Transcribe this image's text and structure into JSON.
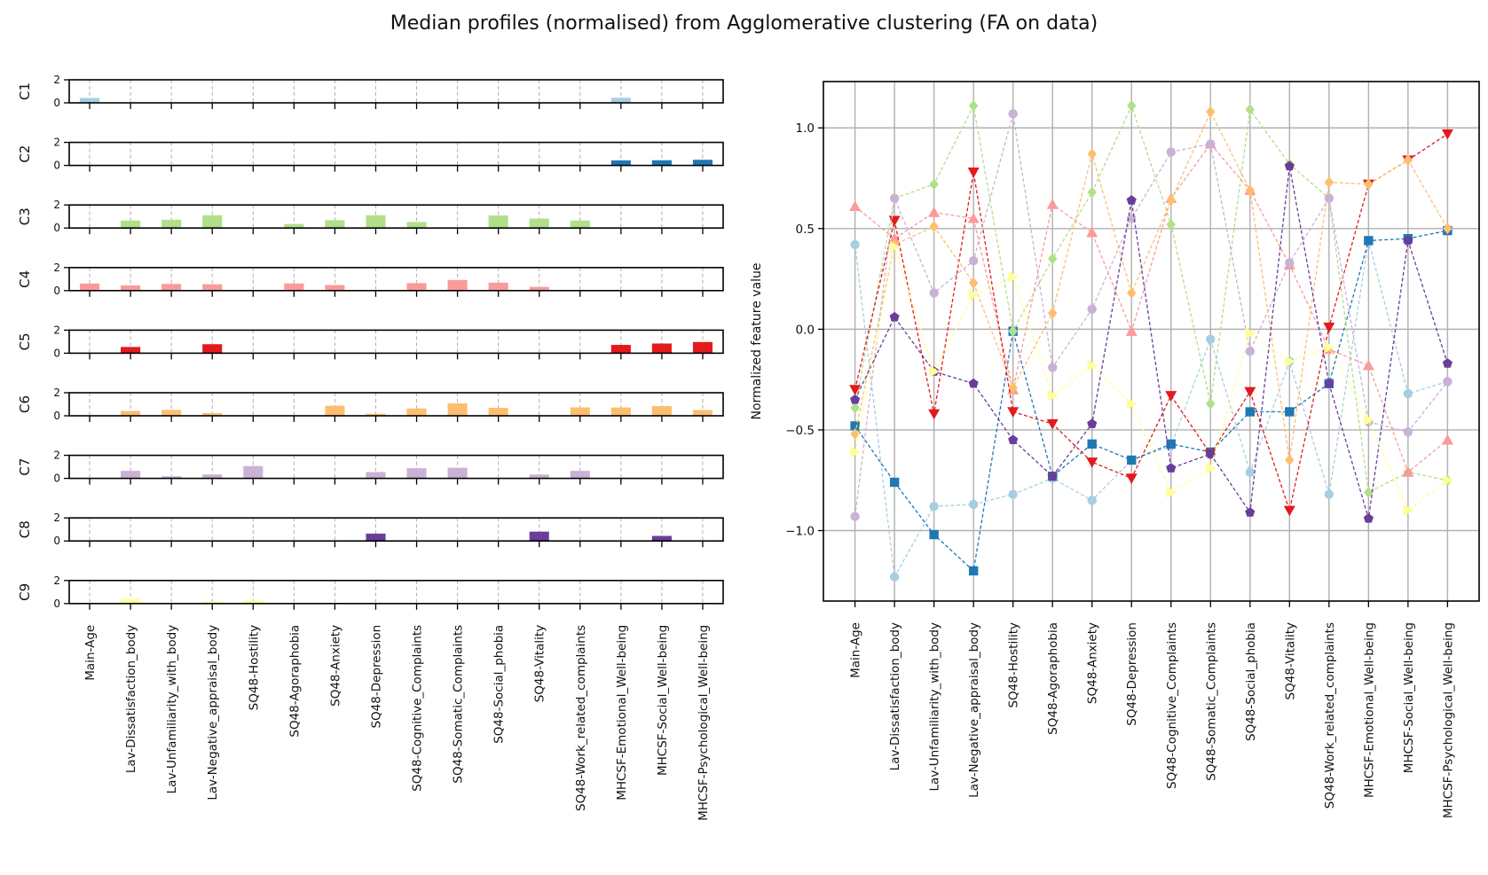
{
  "title": "Median profiles (normalised) from Agglomerative clustering (FA on data)",
  "colors": {
    "C1": "#a6cee3",
    "C2": "#1f78b4",
    "C3": "#b2df8a",
    "C4": "#fb9a99",
    "C5": "#e31a1c",
    "C6": "#fdbf6f",
    "C7": "#cab2d6",
    "C8": "#6a3d9a",
    "C9": "#ffff99"
  },
  "chart_data": [
    {
      "type": "bar",
      "layout": "small-multiples",
      "features": [
        "Main-Age",
        "Lav-Dissatisfaction_body",
        "Lav-Unfamiliarity_with_body",
        "Lav-Negative_appraisal_body",
        "SQ48-Hostility",
        "SQ48-Agoraphobia",
        "SQ48-Anxiety",
        "SQ48-Depression",
        "SQ48-Cognitive_Complaints",
        "SQ48-Somatic_Complaints",
        "SQ48-Social_phobia",
        "SQ48-Vitality",
        "SQ48-Work_related_complaints",
        "MHCSF-Emotional_Well-being",
        "MHCSF-Social_Well-being",
        "MHCSF-Psychological_Well-being"
      ],
      "ylim": [
        0,
        2
      ],
      "yticks": [
        "0",
        "2"
      ],
      "grid": "x-dashed",
      "panels": [
        {
          "name": "C1",
          "values": [
            0.42,
            0,
            0,
            0,
            0,
            0,
            0,
            0,
            0,
            0,
            0,
            0,
            0,
            0.44,
            0,
            0
          ]
        },
        {
          "name": "C2",
          "values": [
            0,
            0,
            0,
            0,
            0,
            0,
            0,
            0,
            0,
            0,
            0,
            0,
            0,
            0.44,
            0.45,
            0.49
          ]
        },
        {
          "name": "C3",
          "values": [
            0,
            0.65,
            0.72,
            1.11,
            0,
            0.35,
            0.68,
            1.11,
            0.52,
            0,
            1.09,
            0.82,
            0.65,
            0,
            0,
            0
          ]
        },
        {
          "name": "C4",
          "values": [
            0.61,
            0.45,
            0.58,
            0.55,
            0,
            0.62,
            0.48,
            0,
            0.65,
            0.92,
            0.69,
            0.32,
            0,
            0,
            0,
            0
          ]
        },
        {
          "name": "C5",
          "values": [
            0,
            0.54,
            0,
            0.78,
            0,
            0,
            0,
            0,
            0,
            0,
            0,
            0,
            0,
            0.72,
            0.84,
            0.97
          ]
        },
        {
          "name": "C6",
          "values": [
            0,
            0.42,
            0.51,
            0.23,
            0,
            0,
            0.87,
            0.18,
            0.64,
            1.08,
            0.69,
            0,
            0.73,
            0.72,
            0.84,
            0.5
          ]
        },
        {
          "name": "C7",
          "values": [
            0,
            0.65,
            0.18,
            0.34,
            1.07,
            0,
            0,
            0.55,
            0.88,
            0.92,
            0,
            0.33,
            0.65,
            0,
            0,
            0
          ]
        },
        {
          "name": "C8",
          "values": [
            0,
            0,
            0,
            0,
            0,
            0,
            0,
            0.64,
            0,
            0,
            0,
            0.81,
            0,
            0,
            0.44,
            0
          ]
        },
        {
          "name": "C9",
          "values": [
            0,
            0.41,
            0,
            0.17,
            0.26,
            0,
            0,
            0,
            0,
            0,
            0,
            0,
            0,
            0,
            0,
            0
          ]
        }
      ]
    },
    {
      "type": "line",
      "ylabel": "Normalized feature value",
      "ylim": [
        -1.35,
        1.23
      ],
      "yticks": [
        -1.0,
        -0.5,
        0.0,
        0.5,
        1.0
      ],
      "ytick_labels": [
        "−1.0",
        "−0.5",
        "0.0",
        "0.5",
        "1.0"
      ],
      "grid": "on",
      "categories": [
        "Main-Age",
        "Lav-Dissatisfaction_body",
        "Lav-Unfamiliarity_with_body",
        "Lav-Negative_appraisal_body",
        "SQ48-Hostility",
        "SQ48-Agoraphobia",
        "SQ48-Anxiety",
        "SQ48-Depression",
        "SQ48-Cognitive_Complaints",
        "SQ48-Somatic_Complaints",
        "SQ48-Social_phobia",
        "SQ48-Vitality",
        "SQ48-Work_related_complaints",
        "MHCSF-Emotional_Well-being",
        "MHCSF-Social_Well-being",
        "MHCSF-Psychological_Well-being"
      ],
      "series": [
        {
          "marker": "circle",
          "color": "#a6cee3",
          "values": [
            0.42,
            -1.23,
            -0.88,
            -0.87,
            -0.82,
            -0.74,
            -0.85,
            -0.65,
            -0.58,
            -0.05,
            -0.71,
            -0.16,
            -0.82,
            0.44,
            -0.32,
            -0.26
          ]
        },
        {
          "marker": "square",
          "color": "#1f78b4",
          "values": [
            -0.48,
            -0.76,
            -1.02,
            -1.2,
            -0.01,
            -0.73,
            -0.57,
            -0.65,
            -0.57,
            -0.61,
            -0.41,
            -0.41,
            -0.27,
            0.44,
            0.45,
            0.49
          ]
        },
        {
          "marker": "diamond",
          "color": "#b2df8a",
          "values": [
            -0.39,
            0.65,
            0.72,
            1.11,
            -0.01,
            0.35,
            0.68,
            1.11,
            0.52,
            -0.37,
            1.09,
            0.82,
            0.65,
            -0.81,
            -0.71,
            -0.75
          ]
        },
        {
          "marker": "triangle-up",
          "color": "#fb9a99",
          "values": [
            0.61,
            0.45,
            0.58,
            0.55,
            -0.3,
            0.62,
            0.48,
            -0.01,
            0.65,
            0.92,
            0.69,
            0.32,
            -0.1,
            -0.18,
            -0.71,
            -0.55
          ]
        },
        {
          "marker": "triangle-down",
          "color": "#e31a1c",
          "values": [
            -0.3,
            0.54,
            -0.42,
            0.78,
            -0.41,
            -0.47,
            -0.66,
            -0.74,
            -0.33,
            -0.62,
            -0.31,
            -0.9,
            0.01,
            0.72,
            0.84,
            0.97
          ]
        },
        {
          "marker": "diamond",
          "color": "#fdbf6f",
          "values": [
            -0.52,
            0.42,
            0.51,
            0.23,
            -0.29,
            0.08,
            0.87,
            0.18,
            0.64,
            1.08,
            0.69,
            -0.65,
            0.73,
            0.72,
            0.84,
            0.5
          ]
        },
        {
          "marker": "circle",
          "color": "#cab2d6",
          "values": [
            -0.93,
            0.65,
            0.18,
            0.34,
            1.07,
            -0.19,
            0.1,
            0.55,
            0.88,
            0.92,
            -0.11,
            0.33,
            0.65,
            -0.46,
            -0.51,
            -0.26
          ]
        },
        {
          "marker": "pentagon",
          "color": "#6a3d9a",
          "values": [
            -0.35,
            0.06,
            -0.21,
            -0.27,
            -0.55,
            -0.73,
            -0.47,
            0.64,
            -0.69,
            -0.62,
            -0.91,
            0.81,
            -0.27,
            -0.94,
            0.44,
            -0.17
          ]
        },
        {
          "marker": "triangle-right",
          "color": "#ffff99",
          "values": [
            -0.61,
            0.41,
            -0.21,
            0.17,
            0.26,
            -0.33,
            -0.18,
            -0.37,
            -0.81,
            -0.69,
            -0.02,
            -0.16,
            -0.09,
            -0.45,
            -0.9,
            -0.75
          ]
        }
      ]
    }
  ]
}
